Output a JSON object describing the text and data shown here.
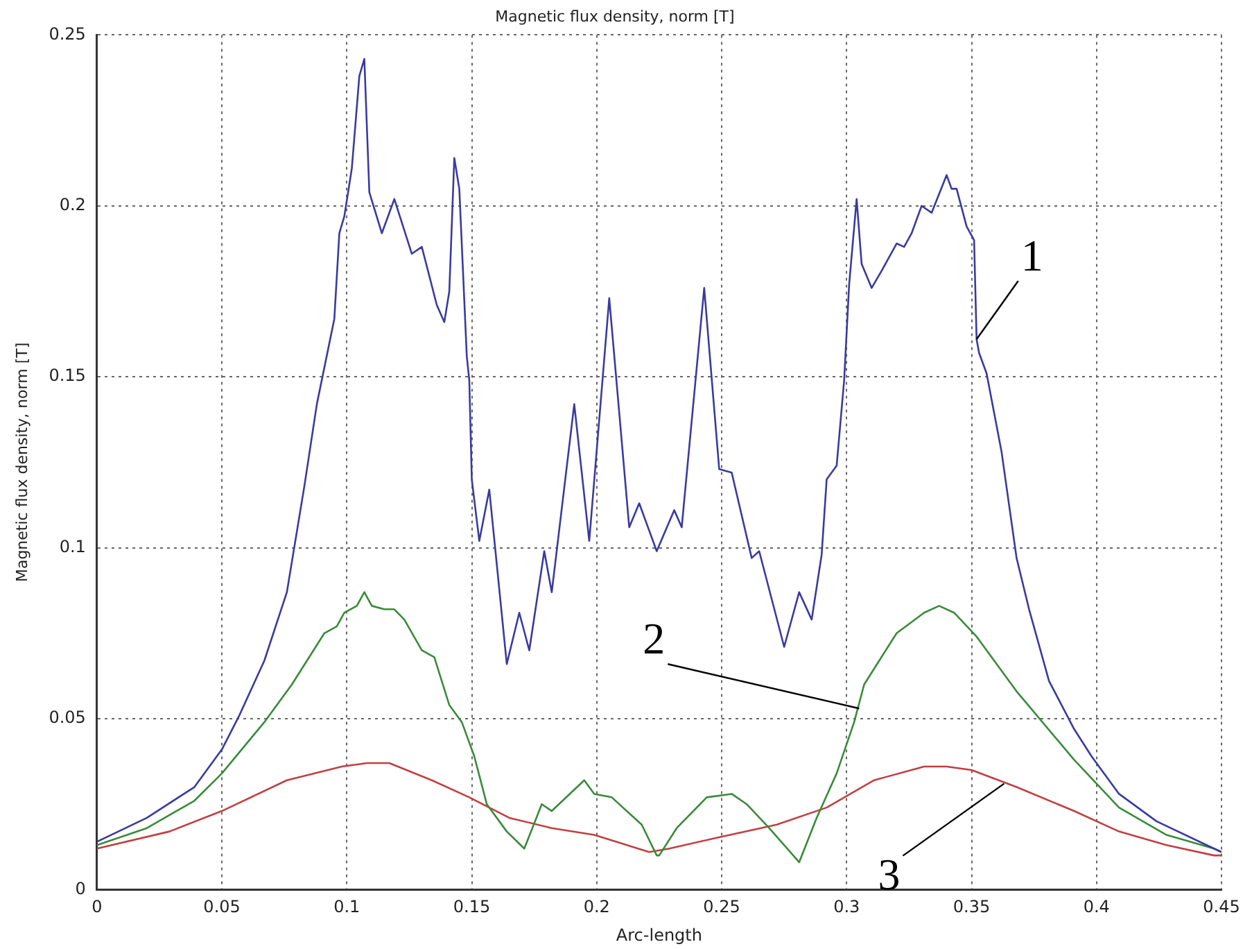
{
  "chart_data": {
    "type": "line",
    "title": "Magnetic flux density, norm [T]",
    "xlabel": "Arc-length",
    "ylabel": "Magnetic flux density, norm [T]",
    "xlim": [
      0,
      0.45
    ],
    "xticks": [
      0,
      0.05,
      0.1,
      0.15,
      0.2,
      0.25,
      0.3,
      0.35,
      0.4,
      0.45
    ],
    "ylim": [
      0,
      0.25
    ],
    "yticks": [
      0,
      0.05,
      0.1,
      0.15,
      0.2,
      0.25
    ],
    "grid": true,
    "legend": false,
    "marker": "none",
    "line_style": "solid",
    "series": [
      {
        "color": "#3a3aa0",
        "x": [
          0,
          0.02,
          0.039,
          0.05,
          0.057,
          0.067,
          0.076,
          0.083,
          0.088,
          0.095,
          0.097,
          0.099,
          0.102,
          0.105,
          0.107,
          0.109,
          0.114,
          0.119,
          0.126,
          0.13,
          0.136,
          0.139,
          0.141,
          0.143,
          0.145,
          0.148,
          0.149,
          0.15,
          0.153,
          0.157,
          0.164,
          0.169,
          0.173,
          0.179,
          0.182,
          0.191,
          0.197,
          0.205,
          0.213,
          0.217,
          0.224,
          0.231,
          0.234,
          0.243,
          0.249,
          0.254,
          0.262,
          0.265,
          0.275,
          0.281,
          0.286,
          0.29,
          0.292,
          0.296,
          0.299,
          0.301,
          0.304,
          0.306,
          0.31,
          0.314,
          0.32,
          0.323,
          0.326,
          0.33,
          0.334,
          0.34,
          0.342,
          0.344,
          0.348,
          0.351,
          0.352,
          0.353,
          0.356,
          0.362,
          0.368,
          0.373,
          0.381,
          0.391,
          0.398,
          0.409,
          0.424,
          0.447,
          0.45
        ],
        "values": [
          0.014,
          0.021,
          0.03,
          0.041,
          0.051,
          0.067,
          0.087,
          0.118,
          0.142,
          0.167,
          0.192,
          0.197,
          0.211,
          0.238,
          0.243,
          0.204,
          0.192,
          0.202,
          0.186,
          0.188,
          0.171,
          0.166,
          0.175,
          0.214,
          0.205,
          0.156,
          0.149,
          0.12,
          0.102,
          0.117,
          0.066,
          0.081,
          0.07,
          0.099,
          0.087,
          0.142,
          0.102,
          0.173,
          0.106,
          0.113,
          0.099,
          0.111,
          0.106,
          0.176,
          0.123,
          0.122,
          0.097,
          0.099,
          0.071,
          0.087,
          0.079,
          0.098,
          0.12,
          0.124,
          0.149,
          0.177,
          0.202,
          0.183,
          0.176,
          0.181,
          0.189,
          0.188,
          0.192,
          0.2,
          0.198,
          0.209,
          0.205,
          0.205,
          0.194,
          0.19,
          0.161,
          0.157,
          0.151,
          0.128,
          0.097,
          0.082,
          0.061,
          0.047,
          0.039,
          0.028,
          0.02,
          0.012,
          0.011
        ]
      },
      {
        "color": "#3a8a3a",
        "x": [
          0,
          0.02,
          0.039,
          0.05,
          0.067,
          0.078,
          0.091,
          0.096,
          0.099,
          0.104,
          0.107,
          0.11,
          0.115,
          0.119,
          0.123,
          0.13,
          0.135,
          0.141,
          0.146,
          0.151,
          0.156,
          0.164,
          0.171,
          0.178,
          0.182,
          0.195,
          0.199,
          0.206,
          0.218,
          0.224,
          0.225,
          0.232,
          0.244,
          0.254,
          0.26,
          0.269,
          0.281,
          0.288,
          0.296,
          0.303,
          0.307,
          0.32,
          0.331,
          0.337,
          0.343,
          0.352,
          0.368,
          0.391,
          0.409,
          0.428,
          0.447,
          0.45
        ],
        "values": [
          0.013,
          0.018,
          0.026,
          0.034,
          0.049,
          0.06,
          0.075,
          0.077,
          0.081,
          0.083,
          0.087,
          0.083,
          0.082,
          0.082,
          0.079,
          0.07,
          0.068,
          0.054,
          0.049,
          0.039,
          0.025,
          0.017,
          0.012,
          0.025,
          0.023,
          0.032,
          0.028,
          0.027,
          0.019,
          0.01,
          0.01,
          0.018,
          0.027,
          0.028,
          0.025,
          0.018,
          0.008,
          0.021,
          0.034,
          0.049,
          0.06,
          0.075,
          0.081,
          0.083,
          0.081,
          0.074,
          0.058,
          0.038,
          0.024,
          0.016,
          0.012,
          0.011
        ]
      },
      {
        "color": "#c04040",
        "x": [
          0,
          0.029,
          0.05,
          0.076,
          0.098,
          0.108,
          0.117,
          0.134,
          0.149,
          0.165,
          0.182,
          0.199,
          0.221,
          0.229,
          0.247,
          0.272,
          0.292,
          0.311,
          0.331,
          0.34,
          0.35,
          0.368,
          0.391,
          0.409,
          0.428,
          0.447,
          0.45
        ],
        "values": [
          0.012,
          0.017,
          0.023,
          0.032,
          0.036,
          0.037,
          0.037,
          0.032,
          0.027,
          0.021,
          0.018,
          0.016,
          0.011,
          0.012,
          0.015,
          0.019,
          0.024,
          0.032,
          0.036,
          0.036,
          0.035,
          0.03,
          0.023,
          0.017,
          0.013,
          0.01,
          0.01
        ]
      }
    ],
    "annotations": [
      {
        "text": "1",
        "x": 0.352,
        "y": 0.161
      },
      {
        "text": "2",
        "x": 0.305,
        "y": 0.053
      },
      {
        "text": "3",
        "x": 0.363,
        "y": 0.031
      }
    ]
  }
}
